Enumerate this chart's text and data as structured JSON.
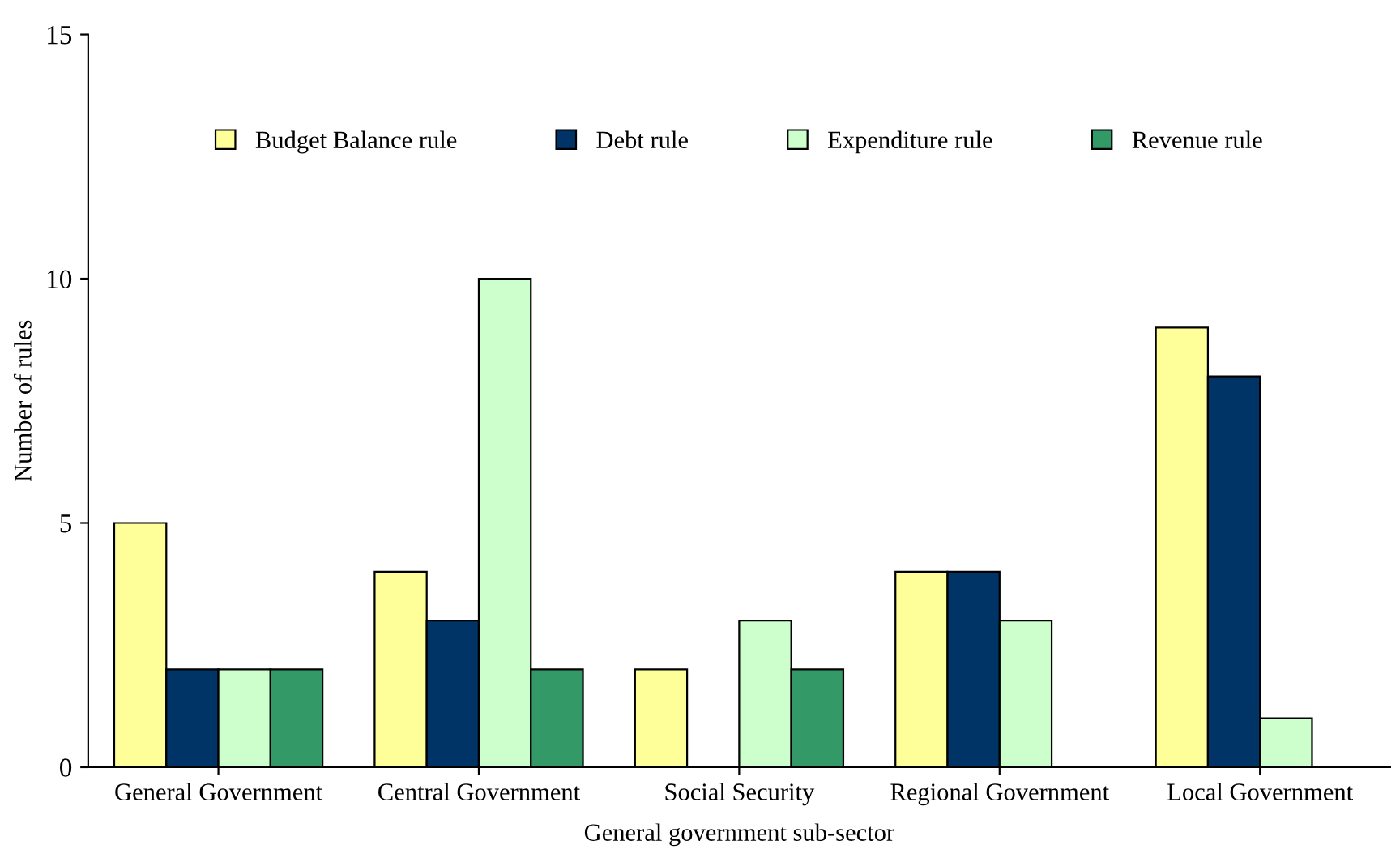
{
  "chart_data": {
    "type": "bar",
    "xlabel": "General government sub-sector",
    "ylabel": "Number of rules",
    "categories": [
      "General Government",
      "Central Government",
      "Social Security",
      "Regional Government",
      "Local Government"
    ],
    "series": [
      {
        "name": "Budget Balance rule",
        "color": "#ffff99",
        "values": [
          5,
          4,
          2,
          4,
          9
        ]
      },
      {
        "name": "Debt rule",
        "color": "#003366",
        "values": [
          2,
          3,
          0,
          4,
          8
        ]
      },
      {
        "name": "Expenditure rule",
        "color": "#ccffcc",
        "values": [
          2,
          10,
          3,
          3,
          1
        ]
      },
      {
        "name": "Revenue rule",
        "color": "#339966",
        "values": [
          2,
          2,
          2,
          0,
          0
        ]
      }
    ],
    "ylim": [
      0,
      15
    ],
    "yticks": [
      0,
      5,
      10,
      15
    ],
    "grid": false,
    "legend": "top"
  }
}
